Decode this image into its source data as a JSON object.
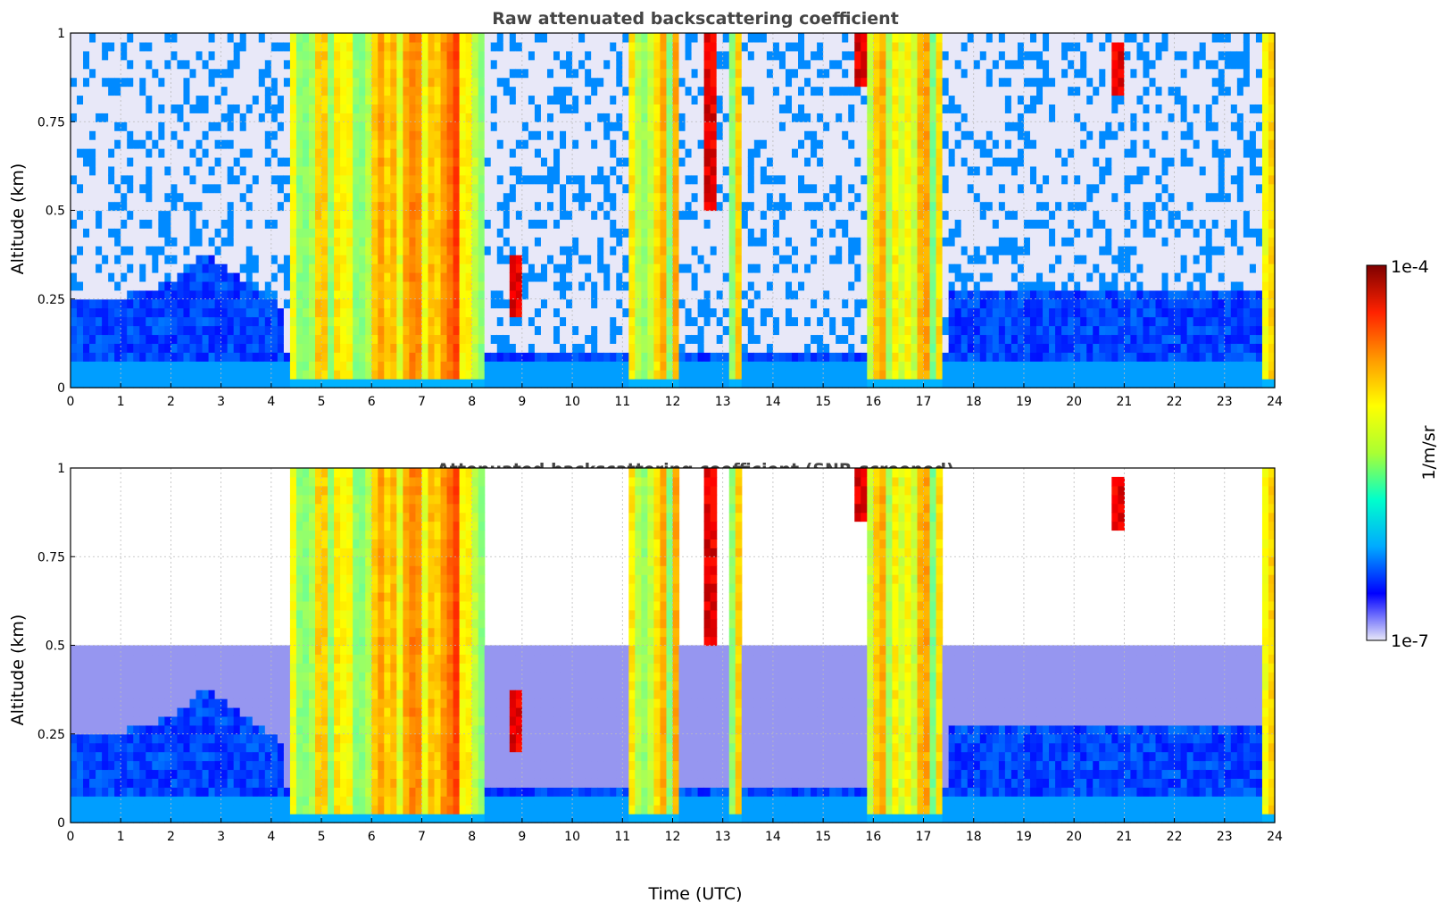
{
  "chart_data": [
    {
      "type": "heatmap",
      "title": "Raw attenuated backscattering coefficient",
      "xlabel": "",
      "ylabel": "Altitude (km)",
      "xlim": [
        0,
        24
      ],
      "ylim": [
        0,
        1
      ],
      "xticks": [
        "0",
        "1",
        "2",
        "3",
        "4",
        "5",
        "6",
        "7",
        "8",
        "9",
        "10",
        "11",
        "12",
        "13",
        "14",
        "15",
        "16",
        "17",
        "18",
        "19",
        "20",
        "21",
        "22",
        "23",
        "24"
      ],
      "yticks": [
        "0",
        "0.25",
        "0.5",
        "0.75",
        "1"
      ],
      "grid": true,
      "screened": false,
      "cloud_periods_utc": [
        [
          4.4,
          8.2
        ],
        [
          11.1,
          12.1
        ],
        [
          13.1,
          13.35
        ],
        [
          15.9,
          17.4
        ],
        [
          23.7,
          24.0
        ]
      ],
      "boundary_layer_top_km": {
        "hours": [
          0,
          1,
          2,
          2.7,
          3.5,
          4.3
        ],
        "values": [
          0.25,
          0.26,
          0.3,
          0.38,
          0.3,
          0.22
        ]
      },
      "high_backscatter_features": [
        {
          "time": 8.9,
          "altitude": [
            0.2,
            0.38
          ]
        },
        {
          "time": 12.8,
          "altitude": [
            0.5,
            1.0
          ]
        },
        {
          "time": 15.7,
          "altitude": [
            0.85,
            1.0
          ]
        },
        {
          "time": 20.85,
          "altitude": [
            0.82,
            0.98
          ]
        }
      ]
    },
    {
      "type": "heatmap",
      "title": "Attenuated backscattering coefficient (SNR-screened)",
      "xlabel": "Time (UTC)",
      "ylabel": "Altitude (km)",
      "xlim": [
        0,
        24
      ],
      "ylim": [
        0,
        1
      ],
      "xticks": [
        "0",
        "1",
        "2",
        "3",
        "4",
        "5",
        "6",
        "7",
        "8",
        "9",
        "10",
        "11",
        "12",
        "13",
        "14",
        "15",
        "16",
        "17",
        "18",
        "19",
        "20",
        "21",
        "22",
        "23",
        "24"
      ],
      "yticks": [
        "0",
        "0.25",
        "0.5",
        "0.75",
        "1"
      ],
      "grid": true,
      "screened": true,
      "cloud_periods_utc": [
        [
          4.4,
          8.2
        ],
        [
          11.1,
          12.1
        ],
        [
          13.1,
          13.35
        ],
        [
          15.9,
          17.4
        ],
        [
          23.7,
          24.0
        ]
      ],
      "boundary_layer_top_km": {
        "hours": [
          0,
          1,
          2,
          2.7,
          3.5,
          4.3
        ],
        "values": [
          0.25,
          0.26,
          0.3,
          0.38,
          0.3,
          0.22
        ]
      },
      "high_backscatter_features": [
        {
          "time": 8.9,
          "altitude": [
            0.2,
            0.38
          ]
        },
        {
          "time": 12.8,
          "altitude": [
            0.5,
            1.0
          ]
        },
        {
          "time": 15.7,
          "altitude": [
            0.85,
            1.0
          ]
        },
        {
          "time": 20.85,
          "altitude": [
            0.82,
            0.98
          ]
        }
      ]
    }
  ],
  "colorbar": {
    "label": "1/m/sr",
    "min_label": "1e-7",
    "max_label": "1e-4",
    "colormap": "jet",
    "colors": [
      "#e8e8f8",
      "#0000ff",
      "#00aaff",
      "#00ffcc",
      "#aaff33",
      "#ffff00",
      "#ff9900",
      "#ff2200",
      "#7f0000"
    ]
  }
}
